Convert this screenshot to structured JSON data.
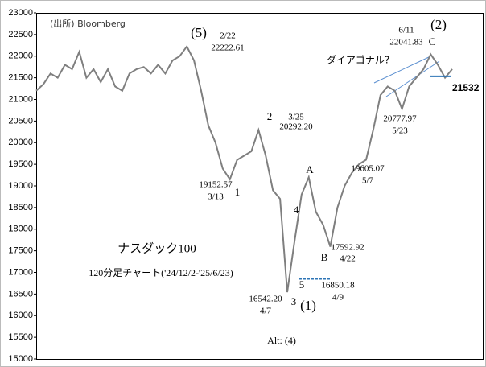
{
  "chart_data": {
    "type": "line",
    "color": "#7f7f7f",
    "values": [
      21200,
      21350,
      21600,
      21500,
      21800,
      21700,
      22100,
      21500,
      21700,
      21400,
      21700,
      21300,
      21200,
      21600,
      21700,
      21750,
      21600,
      21800,
      21600,
      21900,
      22000,
      22222.61,
      21900,
      21200,
      20400,
      20000,
      19400,
      19152.57,
      19600,
      19700,
      19800,
      20292.2,
      19700,
      18900,
      18700,
      16542.2,
      17700,
      18800,
      19200,
      18400,
      18100,
      17592.92,
      18500,
      19000,
      19300,
      19500,
      19605.07,
      20300,
      21100,
      21300,
      21200,
      20777.97,
      21300,
      21500,
      21700,
      22041.83,
      21800,
      21500,
      21700
    ],
    "ylim": [
      15000,
      23000
    ],
    "yticks": [
      15000,
      15500,
      16000,
      16500,
      17000,
      17500,
      18000,
      18500,
      19000,
      19500,
      20000,
      20500,
      21000,
      21500,
      22000,
      22500,
      23000
    ],
    "levels": [
      {
        "value": 21532,
        "color": "#2e75b6"
      },
      {
        "value": 16850.18,
        "color": "#2e75b6"
      }
    ],
    "annotations": [
      "(出所) Bloomberg",
      "(5)",
      "2/22",
      "22222.61",
      "19152.57",
      "3/13",
      "1",
      "2",
      "3/25",
      "20292.20",
      "A",
      "4",
      "3",
      "5",
      "16542.20",
      "4/7",
      "16850.18",
      "4/9",
      "B",
      "17592.92",
      "4/22",
      "19605.07",
      "5/7",
      "20777.97",
      "5/23",
      "6/11",
      "22041.83",
      "(2)",
      "C",
      "ダイアゴナル?",
      "(1)",
      "ナスダック100",
      "120分足チャート('24/12/2-'25/6/23)",
      "Alt: (4)"
    ]
  }
}
